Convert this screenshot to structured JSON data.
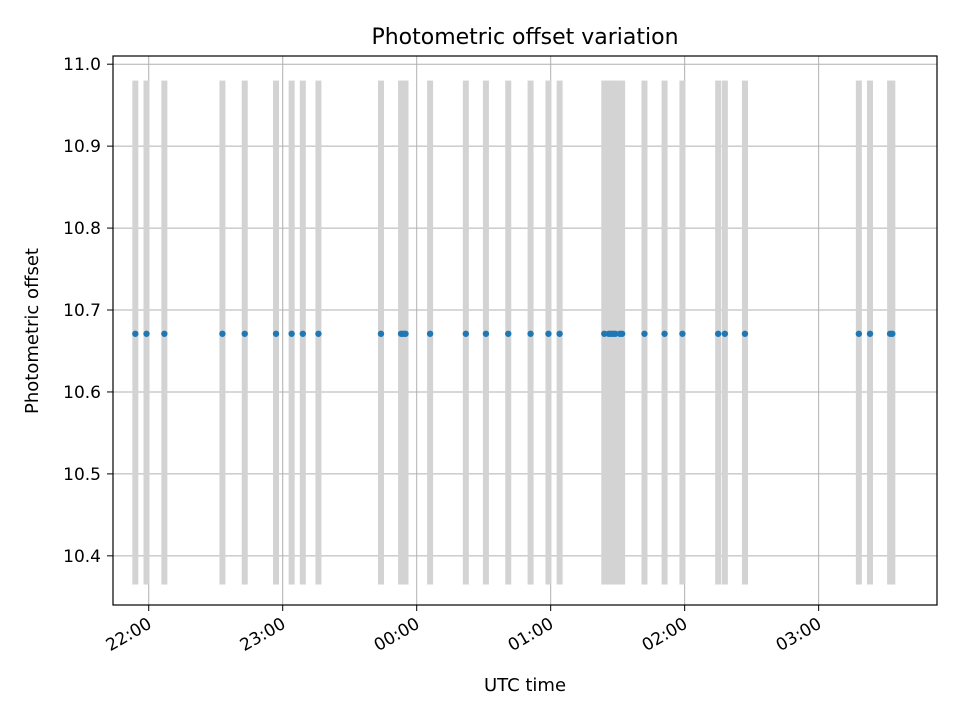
{
  "chart_data": {
    "type": "scatter",
    "title": "Photometric offset variation",
    "xlabel": "UTC time",
    "ylabel": "Photometric offset",
    "x_unit": "UTC clock time (HH:MM), observations run past midnight",
    "xlim": [
      "21:44",
      "03:53"
    ],
    "ylim": [
      10.34,
      11.01
    ],
    "x_ticks": [
      "22:00",
      "23:00",
      "00:00",
      "01:00",
      "02:00",
      "03:00"
    ],
    "y_ticks": [
      "10.4",
      "10.5",
      "10.6",
      "10.7",
      "10.8",
      "10.9",
      "11.0"
    ],
    "grid": true,
    "legend": "none",
    "colors": {
      "points": "#1f77b4",
      "exposure_bands": "#d3d3d3",
      "grid": "#b0b0b0"
    },
    "exposure_band_range": [
      10.365,
      10.98
    ],
    "series": [
      {
        "x": [
          "21:54",
          "21:59",
          "22:07",
          "22:33",
          "22:43",
          "22:57",
          "23:04",
          "23:09",
          "23:16",
          "23:44",
          "23:53",
          "23:54",
          "23:55",
          "00:06",
          "00:22",
          "00:31",
          "00:41",
          "00:51",
          "00:59",
          "01:04",
          "01:24",
          "01:26",
          "01:27",
          "01:28",
          "01:29",
          "01:31",
          "01:32",
          "01:42",
          "01:51",
          "01:59",
          "02:15",
          "02:18",
          "02:27",
          "03:18",
          "03:23",
          "03:32",
          "03:33"
        ],
        "y": [
          10.671,
          10.671,
          10.671,
          10.671,
          10.671,
          10.671,
          10.671,
          10.671,
          10.671,
          10.671,
          10.671,
          10.671,
          10.671,
          10.671,
          10.671,
          10.671,
          10.671,
          10.671,
          10.671,
          10.671,
          10.671,
          10.671,
          10.671,
          10.671,
          10.671,
          10.671,
          10.671,
          10.671,
          10.671,
          10.671,
          10.671,
          10.671,
          10.671,
          10.671,
          10.671,
          10.671,
          10.671
        ]
      }
    ]
  }
}
